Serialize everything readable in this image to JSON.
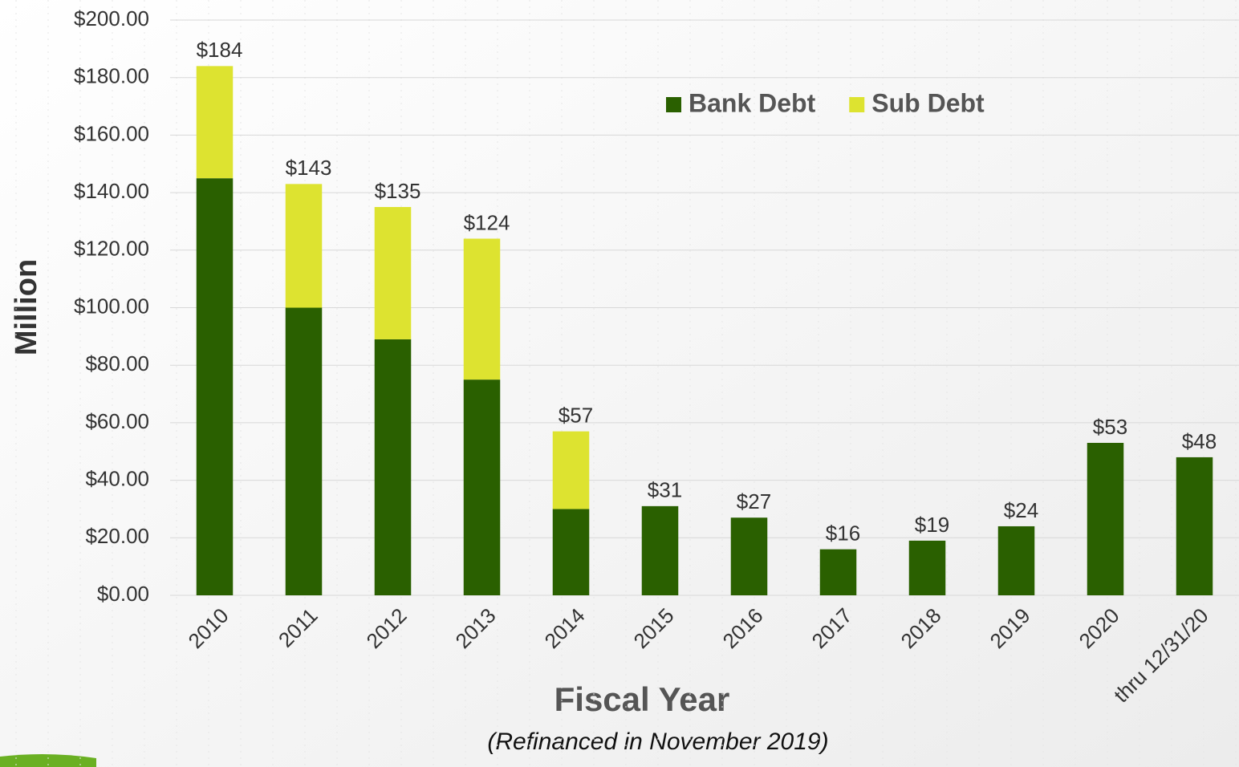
{
  "chart_data": {
    "type": "stacked_bar",
    "x_label": "Fiscal Year",
    "y_label": "Million",
    "subtitle": "(Refinanced in November 2019)",
    "categories": [
      "2010",
      "2011",
      "2012",
      "2013",
      "2014",
      "2015",
      "2016",
      "2017",
      "2018",
      "2019",
      "2020",
      "thru 12/31/20"
    ],
    "series": [
      {
        "name": "Bank Debt",
        "color": "#2a6000",
        "values": [
          145,
          100,
          89,
          75,
          30,
          31,
          27,
          16,
          19,
          24,
          53,
          48
        ]
      },
      {
        "name": "Sub Debt",
        "color": "#dde330",
        "values": [
          39,
          43,
          46,
          49,
          27,
          0,
          0,
          0,
          0,
          0,
          0,
          0
        ]
      }
    ],
    "totals": [
      184,
      143,
      135,
      124,
      57,
      31,
      27,
      16,
      19,
      24,
      53,
      48
    ],
    "total_labels": [
      "$184",
      "$143",
      "$135",
      "$124",
      "$57",
      "$31",
      "$27",
      "$16",
      "$19",
      "$24",
      "$53",
      "$48"
    ],
    "ylim": [
      0,
      200
    ],
    "yticks": [
      {
        "value": 0,
        "label": "$0.00"
      },
      {
        "value": 20,
        "label": "$20.00"
      },
      {
        "value": 40,
        "label": "$40.00"
      },
      {
        "value": 60,
        "label": "$60.00"
      },
      {
        "value": 80,
        "label": "$80.00"
      },
      {
        "value": 100,
        "label": "$100.00"
      },
      {
        "value": 120,
        "label": "$120.00"
      },
      {
        "value": 140,
        "label": "$140.00"
      },
      {
        "value": 160,
        "label": "$160.00"
      },
      {
        "value": 180,
        "label": "$180.00"
      },
      {
        "value": 200,
        "label": "$200.00"
      }
    ],
    "grid": true,
    "legend": "top-center"
  }
}
